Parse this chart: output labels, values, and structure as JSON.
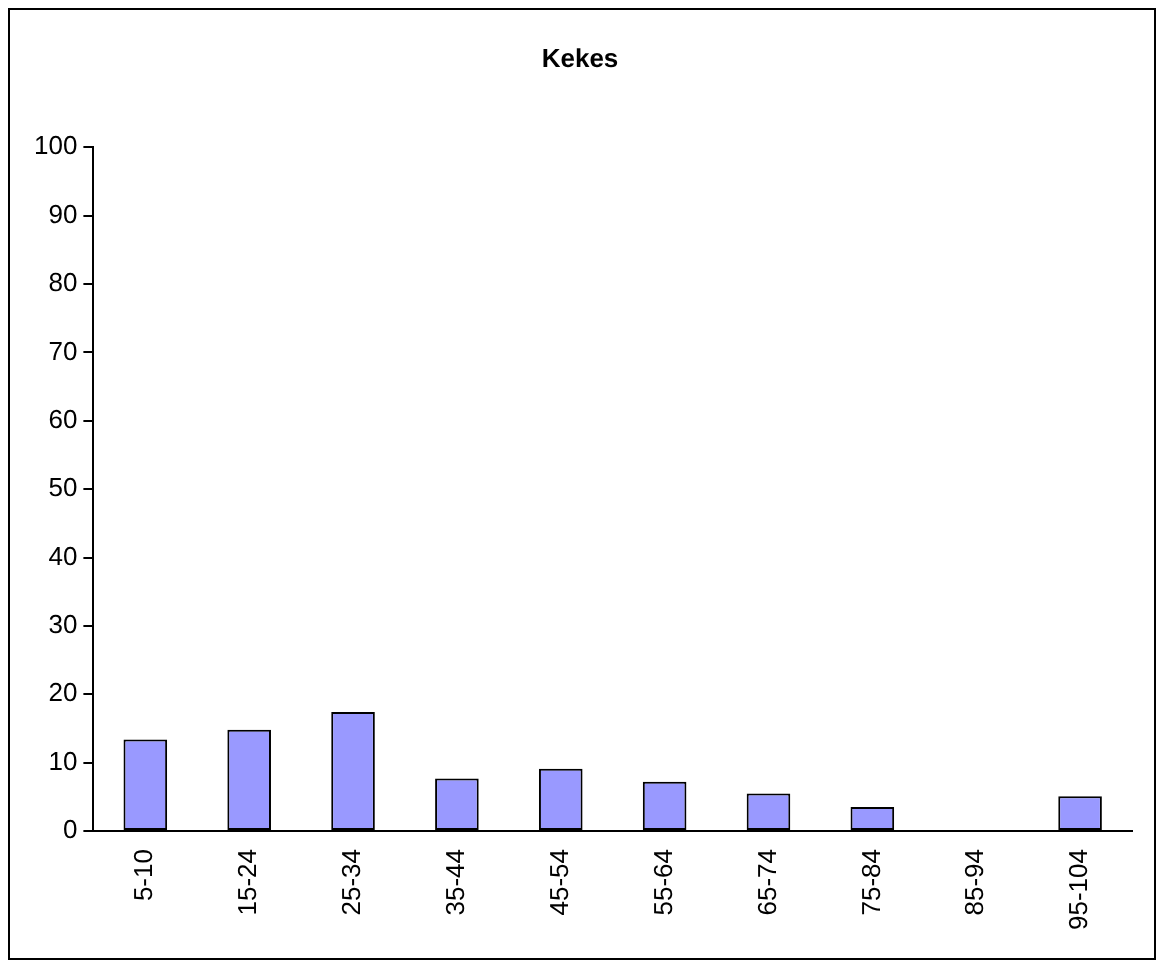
{
  "chart_data": {
    "type": "bar",
    "title": "Kekes",
    "categories": [
      "5-10",
      "15-24",
      "25-34",
      "35-44",
      "45-54",
      "55-64",
      "65-74",
      "75-84",
      "85-94",
      "95-104"
    ],
    "values": [
      13.4,
      14.8,
      17.4,
      7.7,
      9.1,
      7.2,
      5.5,
      3.5,
      0,
      5.1
    ],
    "color": "#9999ff",
    "ylim": [
      0,
      100
    ],
    "yticks": [
      0,
      10,
      20,
      30,
      40,
      50,
      60,
      70,
      80,
      90,
      100
    ],
    "grid": false,
    "legend": false
  }
}
